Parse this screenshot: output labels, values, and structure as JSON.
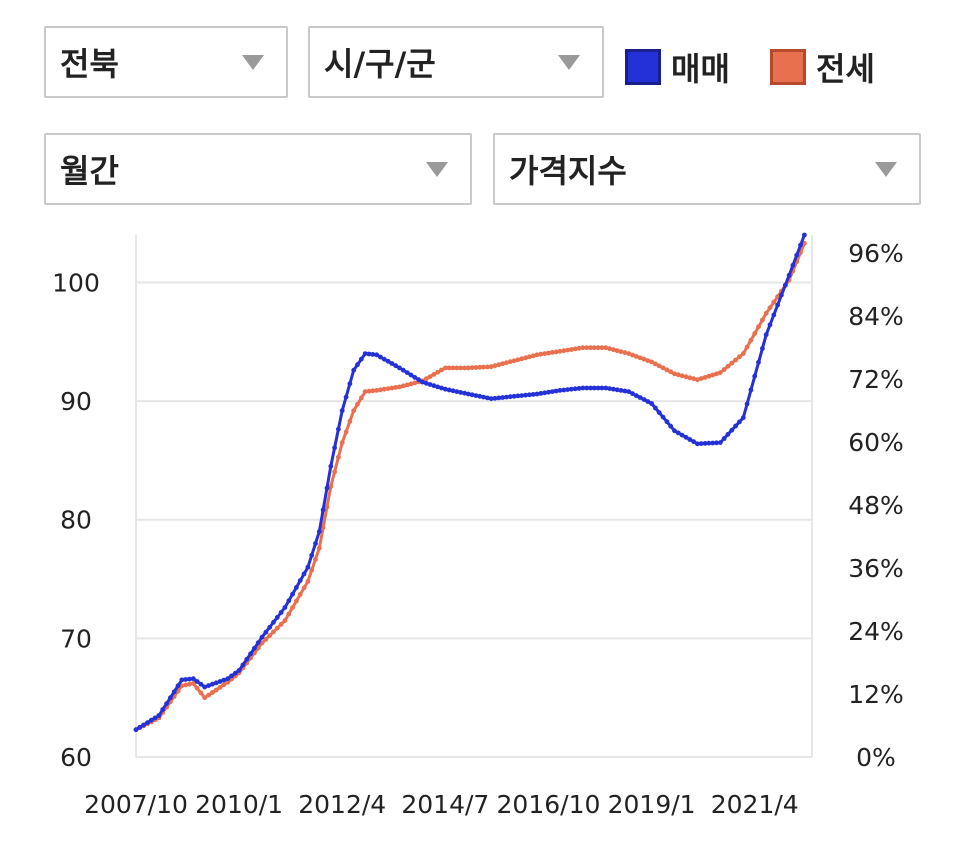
{
  "filters": {
    "region": "전북",
    "district": "시/구/군",
    "period": "월간",
    "metric": "가격지수"
  },
  "colors": {
    "sale": "#2431d6",
    "jeonse": "#e8704e",
    "grid": "#e6e6e6"
  },
  "chart_data": {
    "type": "line",
    "x_labels": [
      "2007/10",
      "2010/1",
      "2012/4",
      "2014/7",
      "2016/10",
      "2019/1",
      "2021/4"
    ],
    "x_range": [
      "2007/10",
      "2022/7"
    ],
    "y_left": {
      "range": [
        60,
        104
      ],
      "ticks": [
        60,
        70,
        80,
        90,
        100
      ]
    },
    "y_right": {
      "range": [
        "0%",
        "96%"
      ],
      "ticks": [
        "0%",
        "12%",
        "24%",
        "36%",
        "48%",
        "60%",
        "72%",
        "84%",
        "96%"
      ]
    },
    "grid": true,
    "legend": "top-right",
    "series": [
      {
        "name": "매매",
        "points": [
          [
            "2007/10",
            62.3
          ],
          [
            "2008/4",
            63.5
          ],
          [
            "2008/10",
            66.5
          ],
          [
            "2009/1",
            66.6
          ],
          [
            "2009/4",
            65.9
          ],
          [
            "2009/10",
            66.6
          ],
          [
            "2010/1",
            67.3
          ],
          [
            "2010/7",
            70.1
          ],
          [
            "2011/1",
            72.6
          ],
          [
            "2011/7",
            76.0
          ],
          [
            "2011/10",
            79.0
          ],
          [
            "2012/1",
            84.5
          ],
          [
            "2012/4",
            89.2
          ],
          [
            "2012/7",
            92.6
          ],
          [
            "2012/10",
            94.0
          ],
          [
            "2013/1",
            93.9
          ],
          [
            "2013/7",
            92.8
          ],
          [
            "2014/1",
            91.6
          ],
          [
            "2014/7",
            91.0
          ],
          [
            "2015/1",
            90.6
          ],
          [
            "2015/7",
            90.2
          ],
          [
            "2016/1",
            90.4
          ],
          [
            "2016/7",
            90.6
          ],
          [
            "2017/1",
            90.9
          ],
          [
            "2017/7",
            91.1
          ],
          [
            "2018/1",
            91.1
          ],
          [
            "2018/7",
            90.8
          ],
          [
            "2019/1",
            89.8
          ],
          [
            "2019/7",
            87.5
          ],
          [
            "2020/1",
            86.4
          ],
          [
            "2020/7",
            86.5
          ],
          [
            "2021/1",
            88.6
          ],
          [
            "2021/7",
            95.6
          ],
          [
            "2022/1",
            100.6
          ],
          [
            "2022/5",
            104.0
          ]
        ]
      },
      {
        "name": "전세",
        "points": [
          [
            "2007/10",
            62.3
          ],
          [
            "2008/4",
            63.3
          ],
          [
            "2008/10",
            66.0
          ],
          [
            "2009/1",
            66.2
          ],
          [
            "2009/4",
            65.0
          ],
          [
            "2009/10",
            66.3
          ],
          [
            "2010/1",
            67.1
          ],
          [
            "2010/7",
            69.6
          ],
          [
            "2011/1",
            71.5
          ],
          [
            "2011/7",
            74.8
          ],
          [
            "2011/10",
            77.6
          ],
          [
            "2012/1",
            82.8
          ],
          [
            "2012/4",
            86.5
          ],
          [
            "2012/7",
            89.2
          ],
          [
            "2012/10",
            90.8
          ],
          [
            "2013/1",
            90.9
          ],
          [
            "2013/7",
            91.2
          ],
          [
            "2014/1",
            91.7
          ],
          [
            "2014/7",
            92.8
          ],
          [
            "2015/1",
            92.8
          ],
          [
            "2015/7",
            92.9
          ],
          [
            "2016/1",
            93.4
          ],
          [
            "2016/7",
            93.9
          ],
          [
            "2017/1",
            94.2
          ],
          [
            "2017/7",
            94.5
          ],
          [
            "2018/1",
            94.5
          ],
          [
            "2018/7",
            94.0
          ],
          [
            "2019/1",
            93.3
          ],
          [
            "2019/7",
            92.3
          ],
          [
            "2020/1",
            91.8
          ],
          [
            "2020/7",
            92.4
          ],
          [
            "2021/1",
            94.0
          ],
          [
            "2021/7",
            97.4
          ],
          [
            "2022/1",
            100.2
          ],
          [
            "2022/5",
            103.3
          ]
        ]
      }
    ]
  }
}
